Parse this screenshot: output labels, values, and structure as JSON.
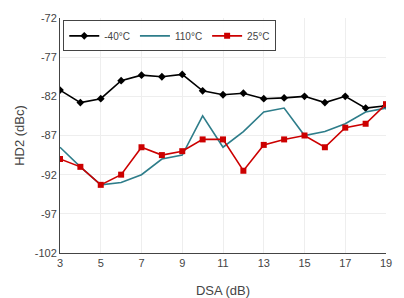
{
  "chart_data": {
    "type": "line",
    "xlabel": "DSA (dB)",
    "ylabel": "HD2 (dBc)",
    "x": [
      3,
      4,
      5,
      6,
      7,
      8,
      9,
      10,
      11,
      12,
      13,
      14,
      15,
      16,
      17,
      18,
      19
    ],
    "series": [
      {
        "name": "-40°C",
        "color": "#000000",
        "marker": "diamond",
        "values": [
          -81.2,
          -82.8,
          -82.3,
          -80.0,
          -79.3,
          -79.5,
          -79.2,
          -81.3,
          -81.8,
          -81.6,
          -82.3,
          -82.2,
          -82.0,
          -82.8,
          -82.0,
          -83.5,
          -83.2
        ]
      },
      {
        "name": "110°C",
        "color": "#2e7d8a",
        "values": [
          -88.5,
          -91.0,
          -93.3,
          -93.0,
          -92.0,
          -90.0,
          -89.5,
          -84.5,
          -88.5,
          -86.5,
          -84.0,
          -83.5,
          -87.0,
          -86.5,
          -85.5,
          -84.0,
          -83.5
        ]
      },
      {
        "name": "25°C",
        "color": "#cc0000",
        "marker": "square",
        "values": [
          -90.0,
          -91.0,
          -93.3,
          -92.0,
          -88.5,
          -89.5,
          -89.0,
          -87.5,
          -87.5,
          -91.5,
          -88.2,
          -87.5,
          -87.0,
          -88.5,
          -86.0,
          -85.5,
          -83.0
        ]
      }
    ],
    "xlim": [
      3,
      19
    ],
    "ylim": [
      -102,
      -72
    ],
    "xticks": [
      3,
      5,
      7,
      9,
      11,
      13,
      15,
      17,
      19
    ],
    "yticks": [
      -102,
      -97,
      -92,
      -87,
      -82,
      -77,
      -72
    ],
    "grid": true,
    "legend": "upper left"
  }
}
